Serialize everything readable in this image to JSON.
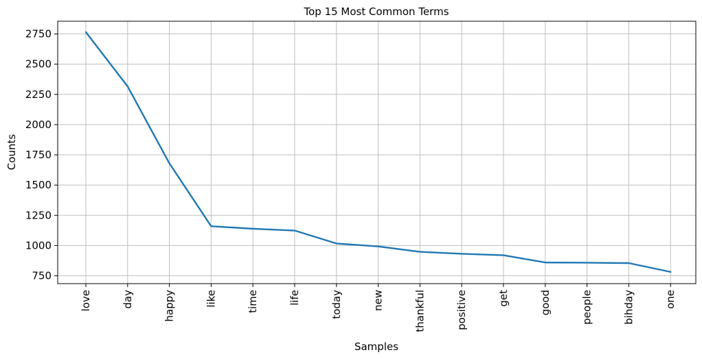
{
  "chart_data": {
    "type": "line",
    "title": "Top 15 Most Common Terms",
    "xlabel": "Samples",
    "ylabel": "Counts",
    "categories": [
      "love",
      "day",
      "happy",
      "like",
      "time",
      "life",
      "today",
      "new",
      "thankful",
      "positive",
      "get",
      "good",
      "people",
      "bihday",
      "one"
    ],
    "series": [
      {
        "values": [
          2765,
          2316,
          1680,
          1160,
          1139,
          1124,
          1017,
          993,
          948,
          932,
          920,
          860,
          858,
          855,
          782
        ]
      }
    ],
    "ylim": [
      685,
      2855
    ],
    "yticks": [
      750,
      1000,
      1250,
      1500,
      1750,
      2000,
      2250,
      2500,
      2750
    ],
    "grid": true,
    "line_color": "#1f77b4"
  }
}
